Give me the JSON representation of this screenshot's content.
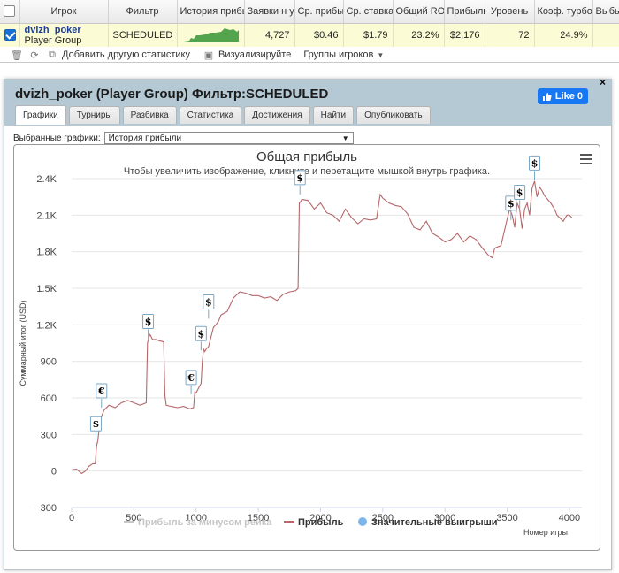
{
  "grid": {
    "headers": [
      "Игрок",
      "Фильтр",
      "История прибыл",
      "Заявки н у",
      "Ср. прибы",
      "Ср. ставка",
      "Общий ROI",
      "Прибыль",
      "Уровень",
      "Коэф. турбо",
      "Выбы"
    ],
    "row": {
      "player_name": "dvizh_poker",
      "player_type": "Player Group",
      "filter": "SCHEDULED",
      "entries": "4,727",
      "avg_profit": "$0.46",
      "avg_stake": "$1.79",
      "roi": "23.2%",
      "profit": "$2,176",
      "level": "72",
      "turbo": "24.9%"
    },
    "toolbar": {
      "add_stats": "Добавить другую статистику",
      "visualize": "Визуализируйте",
      "groups": "Группы игроков"
    }
  },
  "panel": {
    "title": "dvizh_poker (Player Group) Фильтр:SCHEDULED",
    "like_label": "Like 0",
    "close": "×",
    "tabs": [
      "Графики",
      "Турниры",
      "Разбивка",
      "Статистика",
      "Достижения",
      "Найти",
      "Опубликовать"
    ],
    "active_tab": 0,
    "select_label": "Выбранные графики:",
    "select_value": "История прибыли"
  },
  "chart_data": {
    "type": "line",
    "title": "Общая прибыль",
    "subtitle": "Чтобы увеличить изображение, кликните и перетащите мышкой внутрь графика.",
    "ylabel": "Суммарный итог (USD)",
    "xlabel": "Номер игры",
    "xlim": [
      0,
      4100
    ],
    "ylim": [
      -300,
      2400
    ],
    "xticks": [
      "0",
      "500",
      "1000",
      "1500",
      "2000",
      "2500",
      "3000",
      "3500",
      "4000"
    ],
    "yticks": [
      "−300",
      "0",
      "300",
      "600",
      "900",
      "1.2K",
      "1.5K",
      "1.8K",
      "2.1K",
      "2.4K"
    ],
    "legend": [
      "Прибыль за минусом рейка",
      "Прибыль",
      "Значительные выигрыши"
    ],
    "colors": {
      "profit": "#b5676a",
      "rake_series": "#c8c8c8",
      "big_wins": "#7cb5ec"
    },
    "series": [
      {
        "name": "Прибыль",
        "x": [
          0,
          40,
          80,
          110,
          140,
          170,
          190,
          200,
          210,
          230,
          260,
          300,
          350,
          400,
          450,
          500,
          550,
          600,
          610,
          620,
          630,
          650,
          680,
          700,
          740,
          750,
          760,
          800,
          850,
          900,
          950,
          980,
          990,
          1000,
          1020,
          1040,
          1050,
          1060,
          1070,
          1080,
          1100,
          1120,
          1140,
          1160,
          1180,
          1200,
          1250,
          1300,
          1350,
          1400,
          1450,
          1500,
          1550,
          1600,
          1650,
          1700,
          1750,
          1800,
          1820,
          1830,
          1840,
          1850,
          1900,
          1950,
          2000,
          2050,
          2100,
          2150,
          2200,
          2250,
          2300,
          2350,
          2400,
          2450,
          2480,
          2500,
          2550,
          2600,
          2650,
          2700,
          2750,
          2800,
          2850,
          2900,
          2950,
          3000,
          3050,
          3100,
          3150,
          3200,
          3250,
          3300,
          3350,
          3380,
          3400,
          3450,
          3480,
          3500,
          3520,
          3540,
          3560,
          3580,
          3600,
          3620,
          3640,
          3660,
          3680,
          3700,
          3720,
          3740,
          3760,
          3780,
          3800,
          3850,
          3880,
          3900,
          3950,
          3980,
          4000,
          4020
        ],
        "y": [
          10,
          15,
          -20,
          0,
          40,
          60,
          60,
          200,
          250,
          420,
          500,
          540,
          520,
          560,
          580,
          560,
          540,
          560,
          1050,
          1100,
          1120,
          1080,
          1080,
          1070,
          1060,
          620,
          540,
          530,
          520,
          530,
          510,
          520,
          650,
          640,
          680,
          720,
          900,
          1000,
          980,
          1000,
          1020,
          1100,
          1180,
          1200,
          1230,
          1280,
          1310,
          1420,
          1470,
          1460,
          1440,
          1440,
          1420,
          1430,
          1400,
          1450,
          1470,
          1480,
          1500,
          2200,
          2210,
          2230,
          2220,
          2150,
          2200,
          2120,
          2100,
          2050,
          2150,
          2080,
          2030,
          2070,
          2060,
          2070,
          2270,
          2240,
          2200,
          2180,
          2170,
          2110,
          2000,
          1980,
          2050,
          1950,
          1920,
          1880,
          1900,
          1950,
          1880,
          1930,
          1900,
          1830,
          1770,
          1750,
          1830,
          1850,
          1980,
          2070,
          2150,
          2100,
          2000,
          2200,
          2150,
          1990,
          2150,
          2200,
          2100,
          2320,
          2380,
          2250,
          2330,
          2300,
          2260,
          2200,
          2150,
          2100,
          2050,
          2100,
          2100,
          2080
        ]
      }
    ],
    "big_wins": [
      {
        "x": 195,
        "y": 250,
        "symbol": "$"
      },
      {
        "x": 240,
        "y": 520,
        "symbol": "€"
      },
      {
        "x": 615,
        "y": 1090,
        "symbol": "$"
      },
      {
        "x": 960,
        "y": 630,
        "symbol": "€"
      },
      {
        "x": 1040,
        "y": 990,
        "symbol": "$"
      },
      {
        "x": 1100,
        "y": 1250,
        "symbol": "$"
      },
      {
        "x": 1835,
        "y": 2270,
        "symbol": "$"
      },
      {
        "x": 3530,
        "y": 2060,
        "symbol": "$"
      },
      {
        "x": 3600,
        "y": 2150,
        "symbol": "$"
      },
      {
        "x": 3720,
        "y": 2390,
        "symbol": "$"
      }
    ]
  }
}
